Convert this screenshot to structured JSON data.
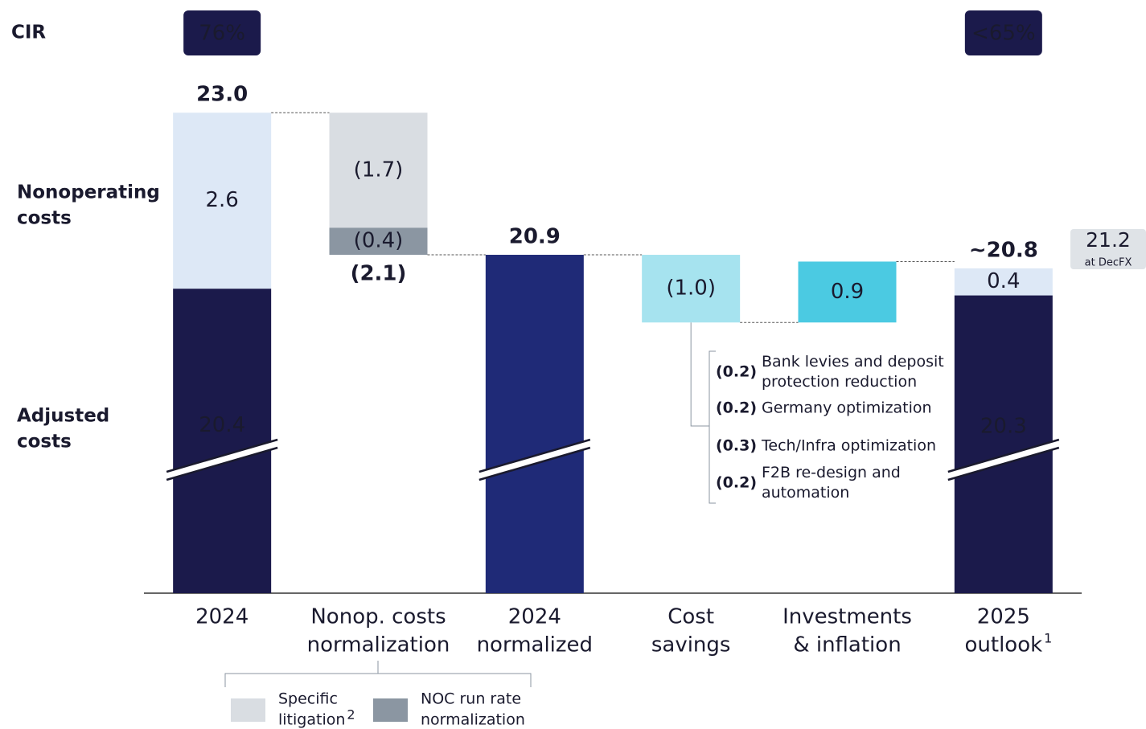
{
  "chart_data": {
    "type": "waterfall",
    "row_label_title": "CIR",
    "row_labels": [
      [
        "Nonoperating",
        "costs"
      ],
      [
        "Adjusted",
        "costs"
      ]
    ],
    "cir_labels": [
      "76%",
      null,
      null,
      null,
      null,
      "<65%"
    ],
    "categories": [
      [
        "2024"
      ],
      [
        "Nonop. costs",
        "normalization"
      ],
      [
        "2024",
        "normalized"
      ],
      [
        "Cost",
        "savings"
      ],
      [
        "Investments",
        "& inflation"
      ],
      [
        "2025",
        "outlook"
      ]
    ],
    "category_footnotes": [
      null,
      null,
      null,
      null,
      null,
      "1"
    ],
    "steps": [
      {
        "kind": "absolute",
        "values": [
          20.4,
          2.6
        ],
        "colors": [
          "#1b1a4b",
          "#dde8f6"
        ],
        "total": 23.0,
        "total_label": "23.0"
      },
      {
        "kind": "delta",
        "values": [
          -1.7,
          -0.4
        ],
        "value_labels": [
          "(1.7)",
          "(0.4)"
        ],
        "colors": [
          "#d9dde2",
          "#8b96a2"
        ],
        "total": -2.1,
        "total_label": "(2.1)"
      },
      {
        "kind": "absolute",
        "values": [
          20.9
        ],
        "value_labels": [
          null
        ],
        "colors": [
          "#1f2a77"
        ],
        "total": 20.9
      },
      {
        "kind": "delta",
        "values": [
          -1.0
        ],
        "value_labels": [
          "(1.0)"
        ],
        "colors": [
          "#a6e3ef"
        ]
      },
      {
        "kind": "delta",
        "values": [
          0.9
        ],
        "colors": [
          "#4bcae2"
        ]
      },
      {
        "kind": "absolute",
        "values": [
          20.3,
          0.4
        ],
        "colors": [
          "#1b1a4b",
          "#dde8f6"
        ],
        "total": 20.8,
        "total_label": "~20.8"
      }
    ],
    "ylim": [
      15.9,
      23.6
    ],
    "axis_break": true,
    "side_annotation": {
      "value": 21.2,
      "label": "at DecFX"
    },
    "breakdown": [
      {
        "value": -0.2,
        "value_label": "(0.2)",
        "text": [
          "Bank levies and deposit",
          "protection reduction"
        ]
      },
      {
        "value": -0.2,
        "value_label": "(0.2)",
        "text": [
          "Germany optimization"
        ]
      },
      {
        "value": -0.3,
        "value_label": "(0.3)",
        "text": [
          "Tech/Infra optimization"
        ]
      },
      {
        "value": -0.2,
        "value_label": "(0.2)",
        "text": [
          "F2B re-design and",
          "automation"
        ]
      }
    ],
    "legend": [
      {
        "name": [
          "Specific",
          "litigation"
        ],
        "footnote": "2",
        "color": "#d9dde2"
      },
      {
        "name": [
          "NOC run rate",
          "normalization"
        ],
        "color": "#8b96a2"
      }
    ]
  }
}
